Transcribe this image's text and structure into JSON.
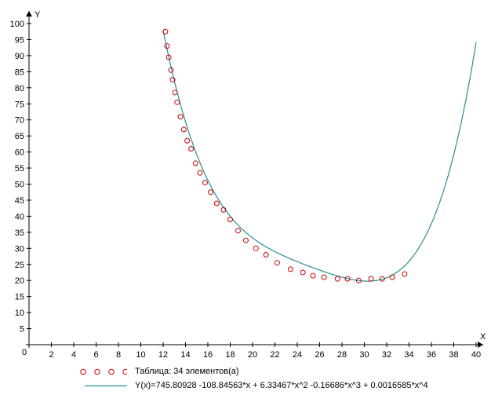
{
  "chart_data": {
    "type": "scatter",
    "x_axis_label": "X",
    "y_axis_label": "Y",
    "xlim": [
      0,
      40
    ],
    "ylim": [
      0,
      100
    ],
    "x_ticks": [
      0,
      2,
      4,
      6,
      8,
      10,
      12,
      14,
      16,
      18,
      20,
      22,
      24,
      26,
      28,
      30,
      32,
      34,
      36,
      38,
      40
    ],
    "y_ticks": [
      5,
      10,
      15,
      20,
      25,
      30,
      35,
      40,
      45,
      50,
      55,
      60,
      65,
      70,
      75,
      80,
      85,
      90,
      95,
      100
    ],
    "origin_label": "0",
    "grid": false,
    "legend_position": "bottom",
    "series": [
      {
        "name": "Таблица: 34 элементов(а)",
        "kind": "points",
        "color": "#cc0000",
        "x": [
          12.2,
          12.35,
          12.5,
          12.7,
          12.85,
          13.05,
          13.25,
          13.55,
          13.85,
          14.15,
          14.5,
          14.9,
          15.3,
          15.75,
          16.25,
          16.8,
          17.4,
          18.0,
          18.7,
          19.4,
          20.3,
          21.2,
          22.2,
          23.4,
          24.5,
          25.4,
          26.4,
          27.6,
          28.5,
          29.5,
          30.6,
          31.6,
          32.5,
          33.6
        ],
        "y": [
          97.5,
          93.0,
          89.5,
          85.5,
          82.5,
          78.5,
          75.5,
          71.0,
          67.0,
          63.5,
          61.0,
          56.5,
          53.5,
          50.5,
          47.5,
          44.0,
          42.0,
          39.0,
          35.5,
          32.5,
          30.0,
          28.0,
          25.5,
          23.5,
          22.5,
          21.5,
          21.0,
          20.5,
          20.5,
          20.0,
          20.5,
          20.5,
          21.0,
          22.0
        ]
      },
      {
        "name": "Y(x)=745.80928 -108.84563*x + 6.33467*x^2 -0.16686*x^3 + 0.0016585*x^4",
        "kind": "line",
        "color": "#2a8f8f",
        "coefficients": [
          745.80928,
          -108.84563,
          6.33467,
          -0.16686,
          0.0016585
        ],
        "x_range": [
          12,
          40
        ]
      }
    ]
  }
}
